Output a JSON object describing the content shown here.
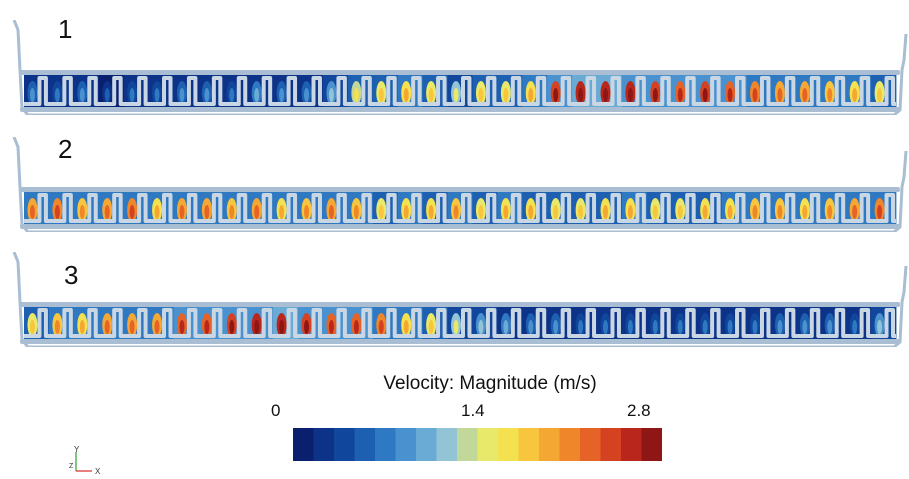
{
  "panels": [
    {
      "label": "1",
      "profile": [
        0.15,
        0.1,
        0.18,
        0.08,
        0.1,
        0.12,
        0.2,
        0.15,
        0.1,
        0.25,
        0.18,
        0.2,
        0.3,
        0.45,
        0.55,
        0.6,
        0.5,
        0.4,
        0.5,
        0.55,
        0.6,
        0.9,
        0.95,
        0.95,
        0.92,
        0.9,
        0.85,
        0.88,
        0.8,
        0.75,
        0.7,
        0.72,
        0.65,
        0.6,
        0.55
      ]
    },
    {
      "label": "2",
      "profile": [
        0.7,
        0.75,
        0.65,
        0.7,
        0.75,
        0.6,
        0.72,
        0.7,
        0.65,
        0.7,
        0.6,
        0.65,
        0.7,
        0.62,
        0.55,
        0.6,
        0.58,
        0.62,
        0.55,
        0.6,
        0.58,
        0.55,
        0.5,
        0.58,
        0.6,
        0.55,
        0.52,
        0.58,
        0.6,
        0.62,
        0.65,
        0.6,
        0.62,
        0.7,
        0.75
      ]
    },
    {
      "label": "3",
      "profile": [
        0.55,
        0.65,
        0.6,
        0.7,
        0.68,
        0.72,
        0.8,
        0.85,
        0.9,
        0.92,
        0.95,
        0.88,
        0.85,
        0.8,
        0.75,
        0.6,
        0.5,
        0.4,
        0.3,
        0.22,
        0.18,
        0.15,
        0.12,
        0.12,
        0.1,
        0.1,
        0.12,
        0.1,
        0.1,
        0.12,
        0.15,
        0.18,
        0.15,
        0.12,
        0.3
      ]
    }
  ],
  "colorbar": {
    "title": "Velocity: Magnitude (m/s)",
    "min_label": "0",
    "mid_label": "1.4",
    "max_label": "2.8",
    "colors": [
      "#0a1f6e",
      "#0d3389",
      "#10469c",
      "#1d5fb0",
      "#2f78c2",
      "#4a92cf",
      "#6aabd6",
      "#93c4d6",
      "#c2d89a",
      "#e8e86a",
      "#f4e150",
      "#f7c63e",
      "#f5a733",
      "#f0862a",
      "#e56326",
      "#d44222",
      "#b9271c",
      "#8e1614"
    ]
  },
  "axes": {
    "y_label": "Y",
    "z_label": "Z",
    "x_label": "X"
  }
}
